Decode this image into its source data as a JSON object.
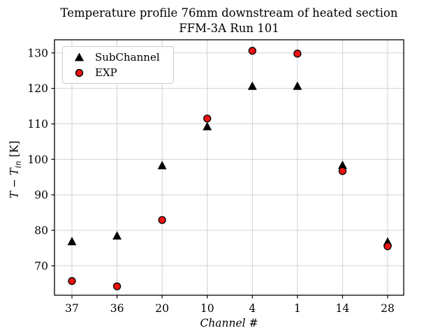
{
  "figure": {
    "title_line1": "Temperature profile 76mm downstream of heated section",
    "title_line2": "FFM-3A Run 101"
  },
  "chart_data": {
    "type": "scatter",
    "title": "Temperature profile 76mm downstream of heated section\nFFM-3A Run 101",
    "categories": [
      "37",
      "36",
      "20",
      "10",
      "4",
      "1",
      "14",
      "28"
    ],
    "series": [
      {
        "name": "SubChannel",
        "marker": "triangle",
        "color": "#000000",
        "edge_color": "#000000",
        "values": [
          76.8,
          78.4,
          98.2,
          109.2,
          120.6,
          120.6,
          98.3,
          76.7
        ]
      },
      {
        "name": "EXP",
        "marker": "circle",
        "color": "#ee1111",
        "edge_color": "#000000",
        "values": [
          65.7,
          64.2,
          82.9,
          111.5,
          130.6,
          129.8,
          96.7,
          75.5
        ]
      }
    ],
    "xlabel": "Channel #",
    "ylabel": "T − T_in [K]",
    "ylabel_parts": {
      "t1": "T − T",
      "sub": "in",
      "rest": " [K]"
    },
    "yticks": [
      70,
      80,
      90,
      100,
      110,
      120,
      130
    ],
    "ylim": [
      61.7,
      133.7
    ],
    "grid": true,
    "grid_color": "#cccccc",
    "axis_color": "#000000",
    "legend_position": "upper left"
  }
}
